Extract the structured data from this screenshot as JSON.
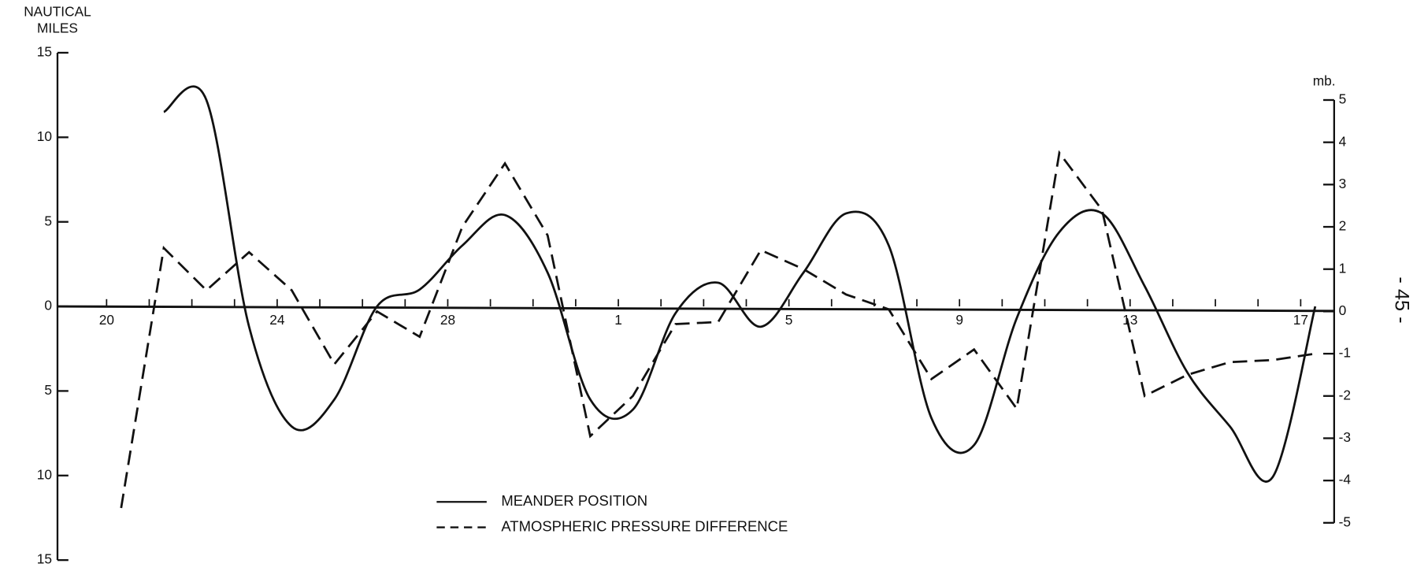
{
  "chart_data": {
    "type": "line",
    "ylabel": [
      "NAUTICAL",
      "MILES"
    ],
    "y2label": "mb.",
    "page_number": "- 45 -",
    "categories": [
      "20",
      null,
      null,
      null,
      "24",
      null,
      null,
      null,
      "28",
      null,
      null,
      null,
      "1",
      null,
      null,
      null,
      "5",
      null,
      null,
      null,
      "9",
      null,
      null,
      null,
      "13",
      null,
      null,
      null,
      "17"
    ],
    "series": [
      {
        "name": "MEANDER POSITION",
        "color": "#111111",
        "style": "solid",
        "smooth": true,
        "axis": "y",
        "values": [
          null,
          11.5,
          12.2,
          -1.2,
          -7.1,
          -5.5,
          0,
          1.0,
          3.6,
          5.4,
          2.0,
          -5.5,
          -6.1,
          -0.4,
          1.4,
          -1.2,
          2.0,
          5.5,
          3.6,
          -6.6,
          -8.2,
          -0.7,
          4.4,
          5.5,
          1.2,
          -3.9,
          -7.1,
          -10.1,
          0
        ]
      },
      {
        "name": "ATMOSPHERIC PRESSURE DIFFERENCE",
        "color": "#111111",
        "style": "dashed",
        "smooth": false,
        "axis": "y2",
        "values": [
          -4.65,
          1.5,
          0.5,
          1.4,
          0.5,
          -1.25,
          0,
          -0.6,
          2.0,
          3.5,
          1.8,
          -2.95,
          -2.0,
          -0.3,
          -0.25,
          1.45,
          1.0,
          0.4,
          0.05,
          -1.6,
          -0.9,
          -2.3,
          3.75,
          2.4,
          -2.0,
          -1.5,
          -1.2,
          -1.15,
          -1.0
        ]
      }
    ],
    "ylim": [
      -15,
      15
    ],
    "yticks": [
      {
        "value": 15,
        "label": "15"
      },
      {
        "value": 10,
        "label": "10"
      },
      {
        "value": 5,
        "label": "5"
      },
      0,
      {
        "value": -5,
        "label": "5"
      },
      {
        "value": -10,
        "label": "10"
      },
      {
        "value": -15,
        "label": "15"
      }
    ],
    "y2lim": [
      -5,
      5
    ],
    "y2ticks": [
      5,
      4,
      3,
      2,
      1,
      0,
      -1,
      -2,
      -3,
      -4,
      -5
    ],
    "legend": "bottom"
  }
}
